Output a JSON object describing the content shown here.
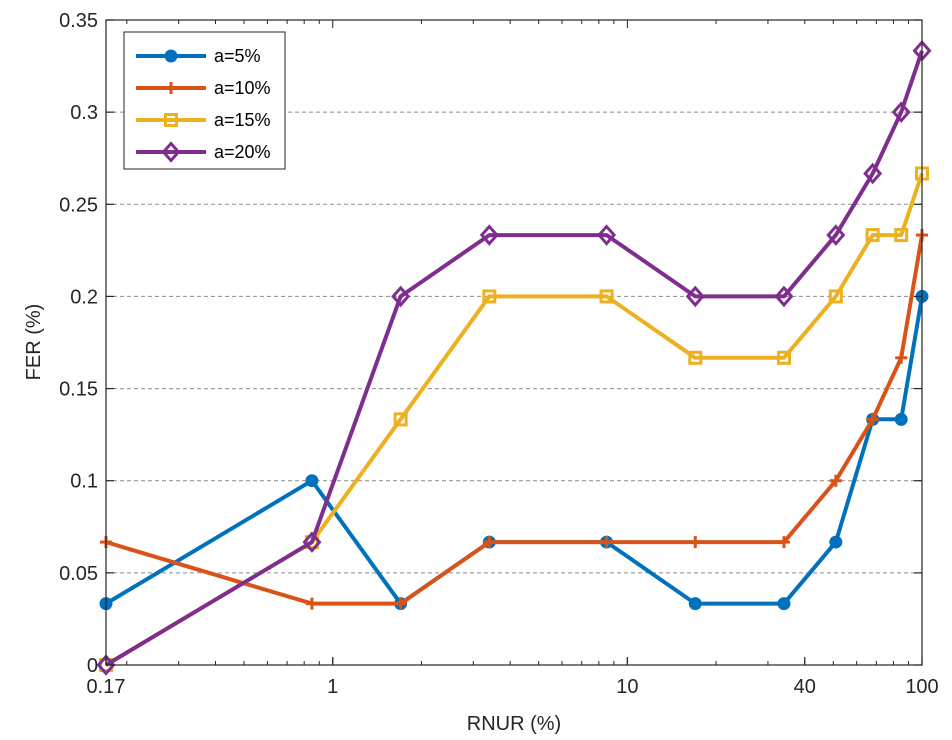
{
  "chart_data": {
    "type": "line",
    "title": "",
    "xlabel": "RNUR (%)",
    "ylabel": "FER (%)",
    "x_scale": "log",
    "xlim": [
      0.17,
      100
    ],
    "ylim": [
      0,
      0.35
    ],
    "x_ticks": [
      0.17,
      1,
      10,
      40,
      100
    ],
    "x_tick_labels": [
      "0.17",
      "1",
      "10",
      "40",
      "100"
    ],
    "y_ticks": [
      0,
      0.05,
      0.1,
      0.15,
      0.2,
      0.25,
      0.3,
      0.35
    ],
    "y_tick_labels": [
      "0",
      "0.05",
      "0.1",
      "0.15",
      "0.2",
      "0.25",
      "0.3",
      "0.35"
    ],
    "grid": "horizontal dashed",
    "legend_position": "top-left",
    "x": [
      0.17,
      0.85,
      1.7,
      3.4,
      8.5,
      17,
      34,
      51,
      68,
      85,
      100
    ],
    "series": [
      {
        "name": "a=5%",
        "color": "#0072BD",
        "marker": "circle",
        "values": [
          0.0333,
          0.1,
          0.0333,
          0.0667,
          0.0667,
          0.0333,
          0.0333,
          0.0667,
          0.1333,
          0.1333,
          0.2
        ]
      },
      {
        "name": "a=10%",
        "color": "#D95319",
        "marker": "plus",
        "values": [
          0.0667,
          0.0333,
          0.0333,
          0.0667,
          0.0667,
          0.0667,
          0.0667,
          0.1,
          0.1333,
          0.1667,
          0.2333
        ]
      },
      {
        "name": "a=15%",
        "color": "#EDB120",
        "marker": "square",
        "values": [
          0,
          0.0667,
          0.1333,
          0.2,
          0.2,
          0.1667,
          0.1667,
          0.2,
          0.2333,
          0.2333,
          0.2667
        ]
      },
      {
        "name": "a=20%",
        "color": "#7E2F8E",
        "marker": "diamond",
        "values": [
          0,
          0.0667,
          0.2,
          0.2333,
          0.2333,
          0.2,
          0.2,
          0.2333,
          0.2667,
          0.3,
          0.3333
        ]
      }
    ]
  }
}
